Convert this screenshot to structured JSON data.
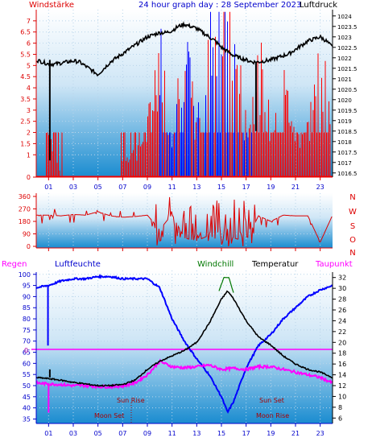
{
  "header": {
    "left_label": "Windstärke",
    "title": "24 hour graph day : 28 September 2023",
    "right_label": "Luftdruck"
  },
  "hour_ticks": [
    "01",
    "03",
    "05",
    "07",
    "09",
    "11",
    "13",
    "15",
    "17",
    "19",
    "21",
    "23"
  ],
  "colors": {
    "wind": "#ff0000",
    "gust_blue": "#0000ff",
    "pressure": "#000000",
    "direction": "#dd0000",
    "humidity": "#0000ff",
    "temperature": "#000000",
    "dewpoint": "#ff00ff",
    "windchill": "#007700",
    "rain": "#ff00ff",
    "axis_red": "#dd0000",
    "axis_blue": "#0000cc",
    "sun_moon_text": "#aa0000",
    "panel_top": "#ffffff",
    "panel_bottom": "#1a8cd0"
  },
  "chart_data": [
    {
      "type": "line",
      "name": "wind-and-pressure",
      "left_axis_label": "Windstärke",
      "right_axis_label": "Luftdruck",
      "left_ticks": [
        "0",
        "1",
        "1.5",
        "2",
        "2.5",
        "3",
        "3.5",
        "4",
        "4.5",
        "5",
        "5.5",
        "6",
        "6.5",
        "7"
      ],
      "right_ticks": [
        "1016.5",
        "1017",
        "1017.5",
        "1018",
        "1018.5",
        "1019",
        "1019.5",
        "1020",
        "1020.5",
        "1021",
        "1021.5",
        "1022",
        "1022.5",
        "1023",
        "1023.5",
        "1024"
      ],
      "ylim_left": [
        0,
        7.5
      ],
      "ylim_right": [
        1016.3,
        1024.3
      ],
      "x_range_hours": [
        0,
        24
      ],
      "series": [
        {
          "x": [
            0,
            0.5,
            1,
            1.5,
            2,
            2.5,
            3,
            3.5,
            4,
            4.5,
            5,
            5.5,
            6,
            6.5,
            7,
            7.5,
            8,
            8.5,
            9,
            9.5,
            10,
            10.5,
            11,
            11.5,
            12,
            12.5,
            13,
            13.5,
            14,
            14.5,
            15,
            15.5,
            16,
            16.5,
            17,
            17.5,
            18,
            18.5,
            19,
            19.5,
            20,
            20.5,
            21,
            21.5,
            22,
            22.5,
            23,
            23.5,
            24
          ],
          "values": [
            1021.9,
            1021.8,
            1021.7,
            1021.7,
            1021.75,
            1021.8,
            1021.85,
            1021.8,
            1021.6,
            1021.4,
            1021.2,
            1021.5,
            1021.8,
            1022.0,
            1022.2,
            1022.4,
            1022.6,
            1022.8,
            1023.0,
            1023.1,
            1023.2,
            1023.2,
            1023.3,
            1023.5,
            1023.6,
            1023.5,
            1023.4,
            1023.2,
            1023.0,
            1022.8,
            1022.5,
            1022.3,
            1022.1,
            1022.0,
            1021.9,
            1021.8,
            1021.8,
            1021.85,
            1021.9,
            1022.0,
            1022.1,
            1022.2,
            1022.4,
            1022.6,
            1022.8,
            1022.9,
            1023.0,
            1022.8,
            1022.5
          ]
        },
        {
          "x": [
            0,
            1,
            2,
            3,
            4,
            5,
            6,
            7,
            8,
            9,
            10,
            11,
            12,
            13,
            14,
            15,
            16,
            17,
            18,
            19,
            20,
            21,
            22,
            23,
            24
          ],
          "values": [
            2,
            2,
            0,
            0,
            0,
            0,
            0,
            1,
            1,
            2,
            5.5,
            2,
            5.5,
            2,
            6,
            7,
            6,
            2,
            5,
            2,
            4,
            2,
            2,
            5,
            2
          ]
        }
      ]
    },
    {
      "type": "line",
      "name": "wind-direction",
      "left_ticks": [
        "360",
        "270",
        "180",
        "90",
        "0"
      ],
      "right_ticks": [
        "N",
        "W",
        "S",
        "O",
        "N"
      ],
      "ylim": [
        0,
        360
      ],
      "series": [
        {
          "x": [
            0,
            1,
            2,
            3,
            4,
            5,
            6,
            7,
            8,
            9,
            10,
            11,
            12,
            13,
            14,
            15,
            16,
            17,
            18,
            19,
            20,
            21,
            22,
            23,
            24
          ],
          "values": [
            225,
            225,
            220,
            230,
            225,
            250,
            220,
            210,
            215,
            225,
            120,
            230,
            60,
            40,
            80,
            30,
            60,
            40,
            220,
            180,
            225,
            220,
            220,
            30,
            225
          ]
        }
      ]
    },
    {
      "type": "line",
      "name": "temperature-humidity",
      "legend": [
        "Regen",
        "Luftfeuchte",
        "Windchill",
        "Temperatur",
        "Taupunkt"
      ],
      "left_ticks": [
        "35",
        "40",
        "45",
        "50",
        "55",
        "60",
        "65",
        "70",
        "75",
        "80",
        "85",
        "90",
        "95",
        "100"
      ],
      "right_ticks": [
        "6",
        "8",
        "10",
        "12",
        "14",
        "16",
        "18",
        "20",
        "22",
        "24",
        "26",
        "28",
        "30",
        "32"
      ],
      "rain_zero_label": "0",
      "ylim_left": [
        33,
        101
      ],
      "ylim_right": [
        5,
        33
      ],
      "annotations": {
        "sun_rise": "Sun Rise",
        "sun_set": "Sun Set",
        "moon_set": "Moon Set",
        "moon_rise": "Moon Rise"
      },
      "series": [
        {
          "x": [
            0,
            1,
            2,
            3,
            4,
            5,
            6,
            7,
            8,
            9,
            10,
            11,
            12,
            13,
            14,
            15,
            15.5,
            16,
            17,
            18,
            19,
            20,
            21,
            22,
            23,
            24
          ],
          "values": [
            94,
            95,
            97,
            98,
            98,
            99,
            99,
            98,
            98,
            98,
            94,
            80,
            70,
            62,
            55,
            45,
            38,
            43,
            58,
            68,
            73,
            80,
            85,
            90,
            93,
            95
          ]
        },
        {
          "x": [
            0,
            1,
            2,
            3,
            4,
            5,
            6,
            7,
            8,
            9,
            10,
            11,
            12,
            13,
            14,
            15,
            15.5,
            16,
            17,
            18,
            19,
            20,
            21,
            22,
            23,
            24
          ],
          "values": [
            13.5,
            13.3,
            13,
            12.6,
            12.3,
            12,
            12,
            12.2,
            13,
            15,
            16.5,
            17.5,
            18.5,
            20,
            23.5,
            28,
            29.5,
            28,
            24,
            21,
            19.5,
            17.5,
            16,
            15,
            14.5,
            13.5
          ]
        },
        {
          "x": [
            0,
            1,
            2,
            3,
            4,
            5,
            6,
            7,
            8,
            9,
            10,
            11,
            12,
            13,
            14,
            15,
            16,
            17,
            18,
            19,
            20,
            21,
            22,
            23,
            24
          ],
          "values": [
            12.5,
            12.3,
            12.2,
            12,
            12,
            11.8,
            11.8,
            11.9,
            12.5,
            14,
            16.5,
            15.5,
            15.3,
            15.5,
            15.8,
            15,
            15.2,
            15,
            15.5,
            15.5,
            15,
            14.5,
            14,
            13.5,
            12.5
          ]
        },
        {
          "x": [
            14.8,
            15.2,
            15.6,
            16.0
          ],
          "values": [
            29.5,
            32,
            32,
            29
          ]
        }
      ]
    }
  ]
}
